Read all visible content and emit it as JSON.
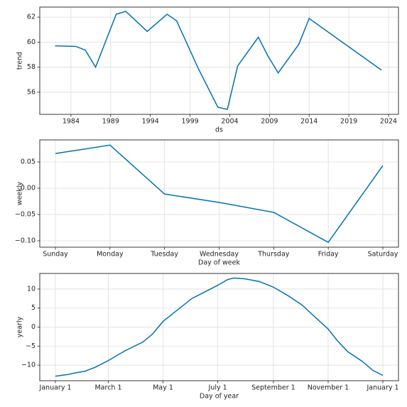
{
  "chart_data": [
    {
      "type": "line",
      "xlabel": "ds",
      "ylabel": "trend",
      "color": "#0072b2",
      "grid": true,
      "x": [
        1982.0,
        1984.6,
        1985.8,
        1987.1,
        1989.7,
        1990.9,
        1993.6,
        1996.1,
        1997.3,
        2000.0,
        2002.5,
        2003.7,
        2005.0,
        2007.6,
        2008.8,
        2010.1,
        2012.7,
        2014.0,
        2023.1
      ],
      "values": [
        59.71,
        59.66,
        59.37,
        58.0,
        62.23,
        62.46,
        60.86,
        62.23,
        61.71,
        57.94,
        54.8,
        54.63,
        58.11,
        60.4,
        58.9,
        57.54,
        59.83,
        61.89,
        57.77
      ],
      "xlim": [
        1980.07,
        2025.25
      ],
      "xticks": [
        1984,
        1989,
        1994,
        1999,
        2004,
        2009,
        2014,
        2019,
        2024
      ],
      "ylim": [
        54.23,
        62.8
      ],
      "yticks": [
        56,
        58,
        60,
        62
      ]
    },
    {
      "type": "line",
      "xlabel": "Day of week",
      "ylabel": "weekly",
      "color": "#0072b2",
      "grid": true,
      "categories": [
        "Sunday",
        "Monday",
        "Tuesday",
        "Wednesday",
        "Thursday",
        "Friday",
        "Saturday"
      ],
      "values": [
        0.066,
        0.082,
        -0.011,
        -0.027,
        -0.046,
        -0.103,
        0.043
      ],
      "ylim": [
        -0.1122,
        0.0919
      ],
      "yticks": [
        {
          "value": -0.1,
          "label": "−0.10"
        },
        {
          "value": -0.05,
          "label": "−0.05"
        },
        {
          "value": 0,
          "label": "0.00"
        },
        0.05
      ]
    },
    {
      "type": "line",
      "xlabel": "Day of year",
      "ylabel": "yearly",
      "color": "#0072b2",
      "grid": true,
      "x": [
        0,
        13,
        21,
        33,
        45,
        59,
        77,
        97,
        108,
        120,
        136,
        152,
        167,
        181,
        192,
        199,
        211,
        227,
        243,
        259,
        275,
        290,
        304,
        314,
        326,
        342,
        354,
        365
      ],
      "values": [
        -12.9,
        -12.5,
        -12.1,
        -11.6,
        -10.5,
        -8.8,
        -6.3,
        -4.0,
        -1.9,
        1.5,
        4.5,
        7.5,
        9.3,
        11.0,
        12.5,
        12.9,
        12.7,
        12.0,
        10.5,
        8.3,
        5.8,
        2.5,
        -0.5,
        -3.5,
        -6.5,
        -9.0,
        -11.4,
        -12.7
      ],
      "xlim": [
        -17.4,
        382.4
      ],
      "xticks": [
        {
          "value": 0,
          "label": "January 1"
        },
        {
          "value": 59,
          "label": "March 1"
        },
        {
          "value": 120,
          "label": "May 1"
        },
        {
          "value": 181,
          "label": "July 1"
        },
        {
          "value": 243,
          "label": "September 1"
        },
        {
          "value": 304,
          "label": "November 1"
        },
        {
          "value": 365,
          "label": "January 1"
        }
      ],
      "ylim": [
        -14.1,
        14.1
      ],
      "yticks": [
        {
          "value": -10,
          "label": "−10"
        },
        {
          "value": -5,
          "label": "−5"
        },
        0,
        5,
        10
      ]
    }
  ]
}
